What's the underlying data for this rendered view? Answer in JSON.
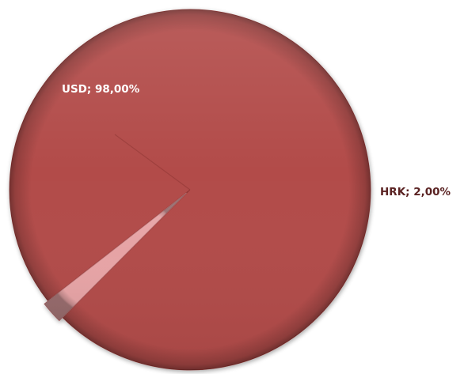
{
  "chart_data": {
    "type": "pie",
    "title": "",
    "slices": [
      {
        "category": "USD",
        "percent": 98.0,
        "label": "USD; 98,00%",
        "color": "#b24c4a",
        "label_color": "#ffffff"
      },
      {
        "category": "HRK",
        "percent": 2.0,
        "label": "HRK; 2,00%",
        "color": "#e6a3a5",
        "label_color": "#5a2222"
      }
    ],
    "start_angle_deg": 142,
    "direction": "clockwise",
    "legend": "none",
    "style": "3d-bevel"
  }
}
